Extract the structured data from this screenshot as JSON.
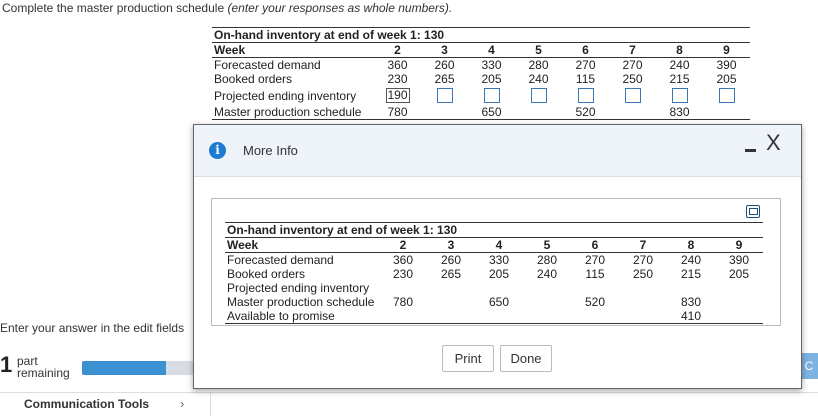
{
  "instructions": {
    "main": "Complete the master production schedule",
    "note": "(enter your responses as whole numbers)."
  },
  "background_table": {
    "caption": "On-hand inventory at end of week 1: 130",
    "week_label": "Week",
    "weeks": [
      "2",
      "3",
      "4",
      "5",
      "6",
      "7",
      "8",
      "9"
    ],
    "forecast_label": "Forecasted demand",
    "forecast": [
      "360",
      "260",
      "330",
      "280",
      "270",
      "270",
      "240",
      "390"
    ],
    "booked_label": "Booked orders",
    "booked": [
      "230",
      "265",
      "205",
      "240",
      "115",
      "250",
      "215",
      "205"
    ],
    "pei_label": "Projected ending inventory",
    "pei_entered": "190",
    "mps_label": "Master production schedule",
    "mps": [
      "780",
      "",
      "650",
      "",
      "520",
      "",
      "830",
      ""
    ]
  },
  "footer": {
    "enter_hint": "Enter your answer in the edit fields",
    "parts_count": "1",
    "parts_word1": "part",
    "parts_word2": "remaining",
    "progress_fraction": 0.75,
    "comm_tools": "Communication Tools",
    "chevron": "›",
    "right_button": "C"
  },
  "dialog": {
    "title": "More Info",
    "info_icon_glyph": "i",
    "close_glyph": "X",
    "print_label": "Print",
    "done_label": "Done",
    "table": {
      "caption": "On-hand inventory at end of week 1: 130",
      "week_label": "Week",
      "weeks": [
        "2",
        "3",
        "4",
        "5",
        "6",
        "7",
        "8",
        "9"
      ],
      "forecast_label": "Forecasted demand",
      "forecast": [
        "360",
        "260",
        "330",
        "280",
        "270",
        "270",
        "240",
        "390"
      ],
      "booked_label": "Booked orders",
      "booked": [
        "230",
        "265",
        "205",
        "240",
        "115",
        "250",
        "215",
        "205"
      ],
      "pei_label": "Projected ending inventory",
      "mps_label": "Master production schedule",
      "mps": [
        "780",
        "",
        "650",
        "",
        "520",
        "",
        "830",
        ""
      ],
      "atp_label": "Available to promise",
      "atp": [
        "",
        "",
        "",
        "",
        "",
        "",
        "410",
        ""
      ]
    }
  },
  "icons": {
    "info": "info-icon",
    "minimize": "minimize-icon",
    "close": "close-icon",
    "copy": "copy-icon",
    "chevron": "chevron-right-icon"
  },
  "colors": {
    "accent": "#1e7bd1",
    "progress": "#3c8fd1",
    "input_border": "#3b78b3",
    "dialog_header": "#eef4fa"
  }
}
